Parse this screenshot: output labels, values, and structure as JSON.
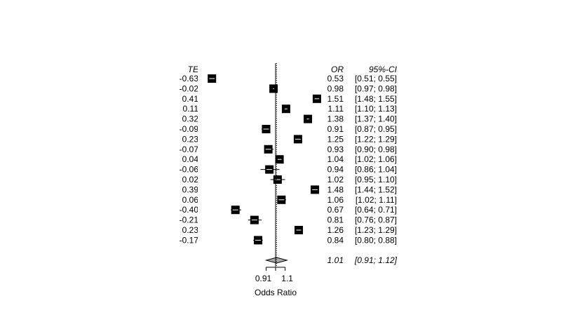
{
  "chart_data": {
    "type": "forest",
    "columns": {
      "te_header": "TE",
      "or_header": "OR",
      "ci_header": "95%-CI"
    },
    "x_axis": {
      "label": "Odds Ratio",
      "tick_labels": [
        "0.91",
        "1.1"
      ],
      "ticks": [
        0.91,
        1.1
      ],
      "scale": "log",
      "range": [
        0.5,
        1.6
      ],
      "reference_line": 1.0
    },
    "studies": [
      {
        "te": "-0.63",
        "or": "0.53",
        "ci": "[0.51; 0.55]",
        "or_value": 0.53,
        "lower": 0.51,
        "upper": 0.55
      },
      {
        "te": "-0.02",
        "or": "0.98",
        "ci": "[0.97; 0.98]",
        "or_value": 0.98,
        "lower": 0.97,
        "upper": 0.98
      },
      {
        "te": "0.41",
        "or": "1.51",
        "ci": "[1.48; 1.55]",
        "or_value": 1.51,
        "lower": 1.48,
        "upper": 1.55
      },
      {
        "te": "0.11",
        "or": "1.11",
        "ci": "[1.10; 1.13]",
        "or_value": 1.11,
        "lower": 1.1,
        "upper": 1.13
      },
      {
        "te": "0.32",
        "or": "1.38",
        "ci": "[1.37; 1.40]",
        "or_value": 1.38,
        "lower": 1.37,
        "upper": 1.4
      },
      {
        "te": "-0.09",
        "or": "0.91",
        "ci": "[0.87; 0.95]",
        "or_value": 0.91,
        "lower": 0.87,
        "upper": 0.95
      },
      {
        "te": "0.23",
        "or": "1.25",
        "ci": "[1.22; 1.29]",
        "or_value": 1.25,
        "lower": 1.22,
        "upper": 1.29
      },
      {
        "te": "-0.07",
        "or": "0.93",
        "ci": "[0.90; 0.98]",
        "or_value": 0.93,
        "lower": 0.9,
        "upper": 0.98
      },
      {
        "te": "0.04",
        "or": "1.04",
        "ci": "[1.02; 1.06]",
        "or_value": 1.04,
        "lower": 1.02,
        "upper": 1.06
      },
      {
        "te": "-0.06",
        "or": "0.94",
        "ci": "[0.86; 1.04]",
        "or_value": 0.94,
        "lower": 0.86,
        "upper": 1.04
      },
      {
        "te": "0.02",
        "or": "1.02",
        "ci": "[0.95; 1.10]",
        "or_value": 1.02,
        "lower": 0.95,
        "upper": 1.1
      },
      {
        "te": "0.39",
        "or": "1.48",
        "ci": "[1.44; 1.52]",
        "or_value": 1.48,
        "lower": 1.44,
        "upper": 1.52
      },
      {
        "te": "0.06",
        "or": "1.06",
        "ci": "[1.02; 1.11]",
        "or_value": 1.06,
        "lower": 1.02,
        "upper": 1.11
      },
      {
        "te": "-0.40",
        "or": "0.67",
        "ci": "[0.64; 0.71]",
        "or_value": 0.67,
        "lower": 0.64,
        "upper": 0.71
      },
      {
        "te": "-0.21",
        "or": "0.81",
        "ci": "[0.76; 0.87]",
        "or_value": 0.81,
        "lower": 0.76,
        "upper": 0.87
      },
      {
        "te": "0.23",
        "or": "1.26",
        "ci": "[1.23; 1.29]",
        "or_value": 1.26,
        "lower": 1.23,
        "upper": 1.29
      },
      {
        "te": "-0.17",
        "or": "0.84",
        "ci": "[0.80; 0.88]",
        "or_value": 0.84,
        "lower": 0.8,
        "upper": 0.88
      }
    ],
    "pooled": {
      "or": "1.01",
      "ci": "[0.91; 1.12]",
      "or_value": 1.01,
      "lower": 0.91,
      "upper": 1.12
    }
  }
}
